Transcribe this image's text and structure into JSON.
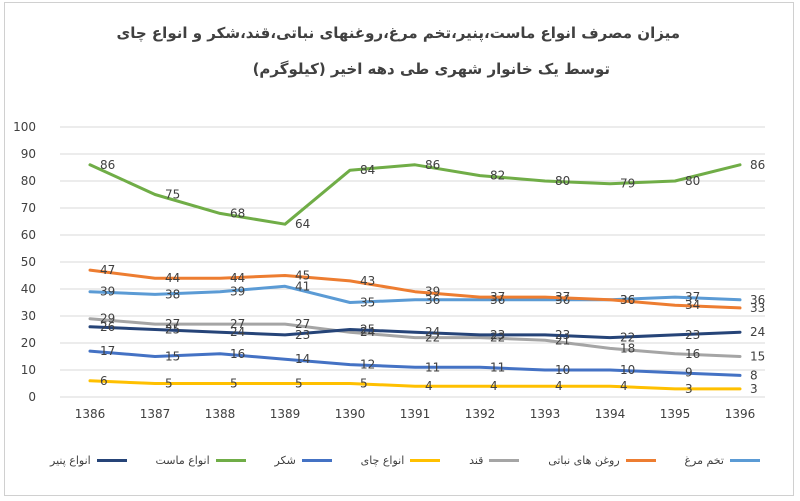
{
  "chart_data": {
    "type": "line",
    "title": "میزان مصرف انواع ماست،پنیر،تخم مرغ،روغنهای نباتی،قند،شکر و انواع چای",
    "subtitle": "توسط یک خانوار شهری طی دهه اخیر (کیلوگرم)",
    "categories": [
      "1386",
      "1387",
      "1388",
      "1389",
      "1390",
      "1391",
      "1392",
      "1393",
      "1394",
      "1395",
      "1396"
    ],
    "ylim": [
      0,
      100
    ],
    "yticks": [
      0,
      10,
      20,
      30,
      40,
      50,
      60,
      70,
      80,
      90,
      100
    ],
    "grid": true,
    "legend_position": "bottom",
    "series": [
      {
        "name": "تخم مرغ",
        "color": "#5b9bd5",
        "values": [
          39,
          38,
          39,
          41,
          35,
          36,
          36,
          36,
          36,
          37,
          36
        ]
      },
      {
        "name": "روغن های نباتی",
        "color": "#ed7d31",
        "values": [
          47,
          44,
          44,
          45,
          43,
          39,
          37,
          37,
          36,
          34,
          33
        ]
      },
      {
        "name": "قند",
        "color": "#a5a5a5",
        "values": [
          29,
          27,
          27,
          27,
          24,
          22,
          22,
          21,
          18,
          16,
          15
        ]
      },
      {
        "name": "انواع چای",
        "color": "#ffc000",
        "values": [
          6,
          5,
          5,
          5,
          5,
          4,
          4,
          4,
          4,
          3,
          3
        ]
      },
      {
        "name": "شکر",
        "color": "#4472c4",
        "values": [
          17,
          15,
          16,
          14,
          12,
          11,
          11,
          10,
          10,
          9,
          8
        ]
      },
      {
        "name": "انواع ماست",
        "color": "#70ad47",
        "values": [
          86,
          75,
          68,
          64,
          84,
          86,
          82,
          80,
          79,
          80,
          86
        ]
      },
      {
        "name": "انواع پنیر",
        "color": "#264478",
        "values": [
          26,
          25,
          24,
          23,
          25,
          24,
          23,
          23,
          22,
          23,
          24
        ]
      }
    ]
  }
}
